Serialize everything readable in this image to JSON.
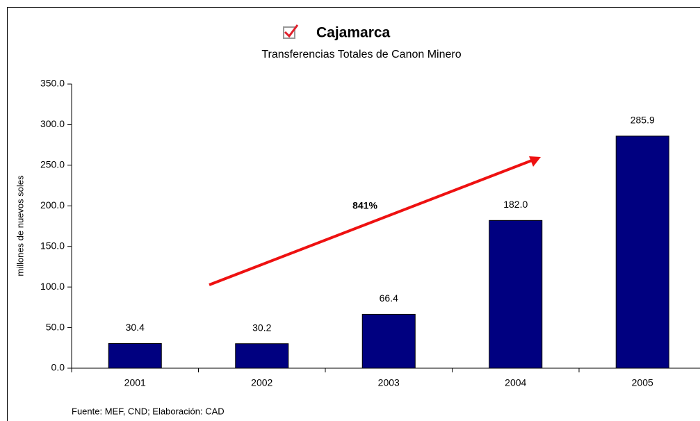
{
  "chart_data": {
    "type": "bar",
    "title": "Cajamarca",
    "subtitle": "Transferencias Totales de Canon Minero",
    "y_label": "millones de nuevos soles",
    "categories": [
      "2001",
      "2002",
      "2003",
      "2004",
      "2005"
    ],
    "values": [
      30.4,
      30.2,
      66.4,
      182.0,
      285.9
    ],
    "value_labels": [
      "30.4",
      "30.2",
      "66.4",
      "182.0",
      "285.9"
    ],
    "color": "#000080",
    "ylim": [
      0,
      350
    ],
    "yticks": [
      {
        "value": 0,
        "label": "0.0"
      },
      {
        "value": 50,
        "label": "50.0"
      },
      {
        "value": 100,
        "label": "100.0"
      },
      {
        "value": 150,
        "label": "150.0"
      },
      {
        "value": 200,
        "label": "200.0"
      },
      {
        "value": 250,
        "label": "250.0"
      },
      {
        "value": 300,
        "label": "300.0"
      },
      {
        "value": 350,
        "label": "350.0"
      }
    ],
    "grid": false,
    "annotation": "841%",
    "source": "Fuente: MEF, CND; Elaboración: CAD"
  }
}
